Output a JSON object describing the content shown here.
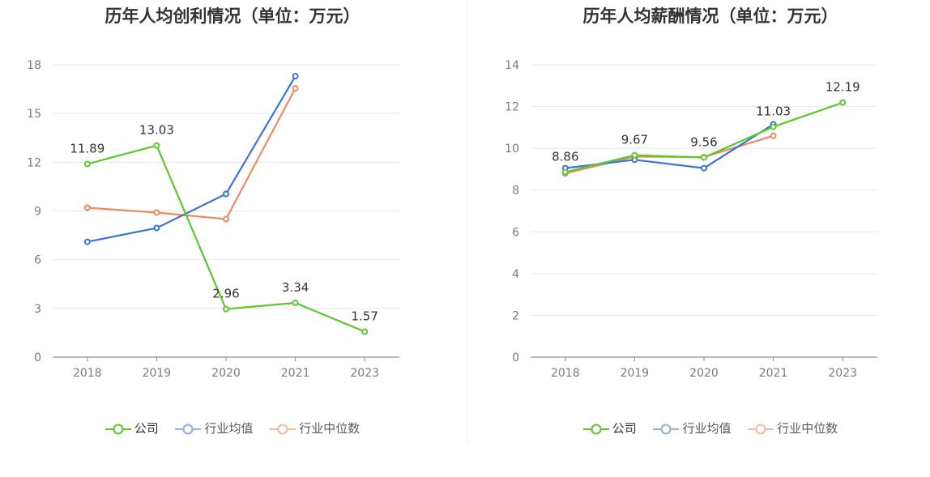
{
  "colors": {
    "company": "#5ac92a",
    "avg": "#3b73db",
    "median": "#f08a5d"
  },
  "legend": {
    "company": "公司",
    "avg": "行业均值",
    "median": "行业中位数"
  },
  "chart_data": [
    {
      "type": "line",
      "title": "历年人均创利情况（单位：万元）",
      "categories": [
        "2018",
        "2019",
        "2020",
        "2021",
        "2023"
      ],
      "ylim": [
        0,
        18
      ],
      "yticks": [
        0,
        3,
        6,
        9,
        12,
        15,
        18
      ],
      "grid": true,
      "legend_position": "bottom",
      "series": [
        {
          "name": "公司",
          "values": [
            11.89,
            13.03,
            2.96,
            3.34,
            1.57
          ],
          "labels": [
            "11.89",
            "13.03",
            "2.96",
            "3.34",
            "1.57"
          ]
        },
        {
          "name": "行业均值",
          "values": [
            7.1,
            7.95,
            10.05,
            17.3,
            null
          ]
        },
        {
          "name": "行业中位数",
          "values": [
            9.2,
            8.9,
            8.5,
            16.55,
            null
          ]
        }
      ]
    },
    {
      "type": "line",
      "title": "历年人均薪酬情况（单位：万元）",
      "categories": [
        "2018",
        "2019",
        "2020",
        "2021",
        "2023"
      ],
      "ylim": [
        0,
        14
      ],
      "yticks": [
        0,
        2,
        4,
        6,
        8,
        10,
        12,
        14
      ],
      "grid": true,
      "legend_position": "bottom",
      "series": [
        {
          "name": "公司",
          "values": [
            8.86,
            9.67,
            9.56,
            11.03,
            12.19
          ],
          "labels": [
            "8.86",
            "9.67",
            "9.56",
            "11.03",
            "12.19"
          ]
        },
        {
          "name": "行业均值",
          "values": [
            9.05,
            9.45,
            9.05,
            11.15,
            null
          ]
        },
        {
          "name": "行业中位数",
          "values": [
            8.8,
            9.6,
            9.58,
            10.6,
            null
          ]
        }
      ]
    }
  ]
}
